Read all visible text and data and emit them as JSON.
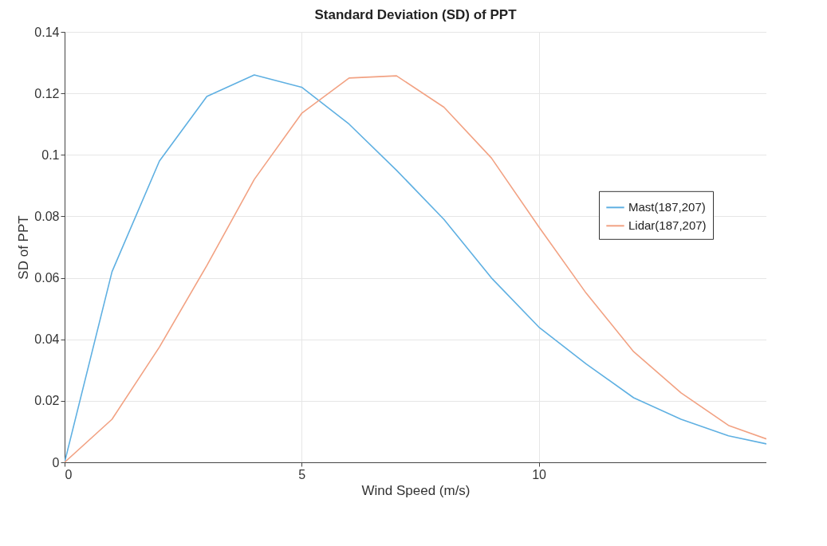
{
  "chart_data": {
    "type": "line",
    "title": "Standard Deviation (SD) of PPT",
    "xlabel": "Wind Speed (m/s)",
    "ylabel": "SD of PPT",
    "x": [
      0,
      1,
      2,
      3,
      4,
      5,
      6,
      7,
      8,
      9,
      10,
      11,
      12,
      13,
      14,
      14.8
    ],
    "series": [
      {
        "name": "Mast(187,207)",
        "color": "#5fb0e2",
        "values": [
          0,
          0.062,
          0.098,
          0.119,
          0.126,
          0.122,
          0.11,
          0.095,
          0.079,
          0.06,
          0.044,
          0.032,
          0.021,
          0.014,
          0.0086,
          0.006
        ]
      },
      {
        "name": "Lidar(187,207)",
        "color": "#f2a283",
        "values": [
          0,
          0.014,
          0.0375,
          0.064,
          0.092,
          0.1135,
          0.125,
          0.1257,
          0.1155,
          0.099,
          0.0766,
          0.055,
          0.036,
          0.0226,
          0.012,
          0.0076
        ]
      }
    ],
    "xlim": [
      0,
      14.8
    ],
    "xticks": [
      0,
      5,
      10
    ],
    "ylim": [
      0,
      0.14
    ],
    "yticks": [
      0,
      0.02,
      0.04,
      0.06,
      0.08,
      0.1,
      0.12,
      0.14
    ],
    "grid": true,
    "legend": "right",
    "marker": "none",
    "line_style": "solid"
  }
}
